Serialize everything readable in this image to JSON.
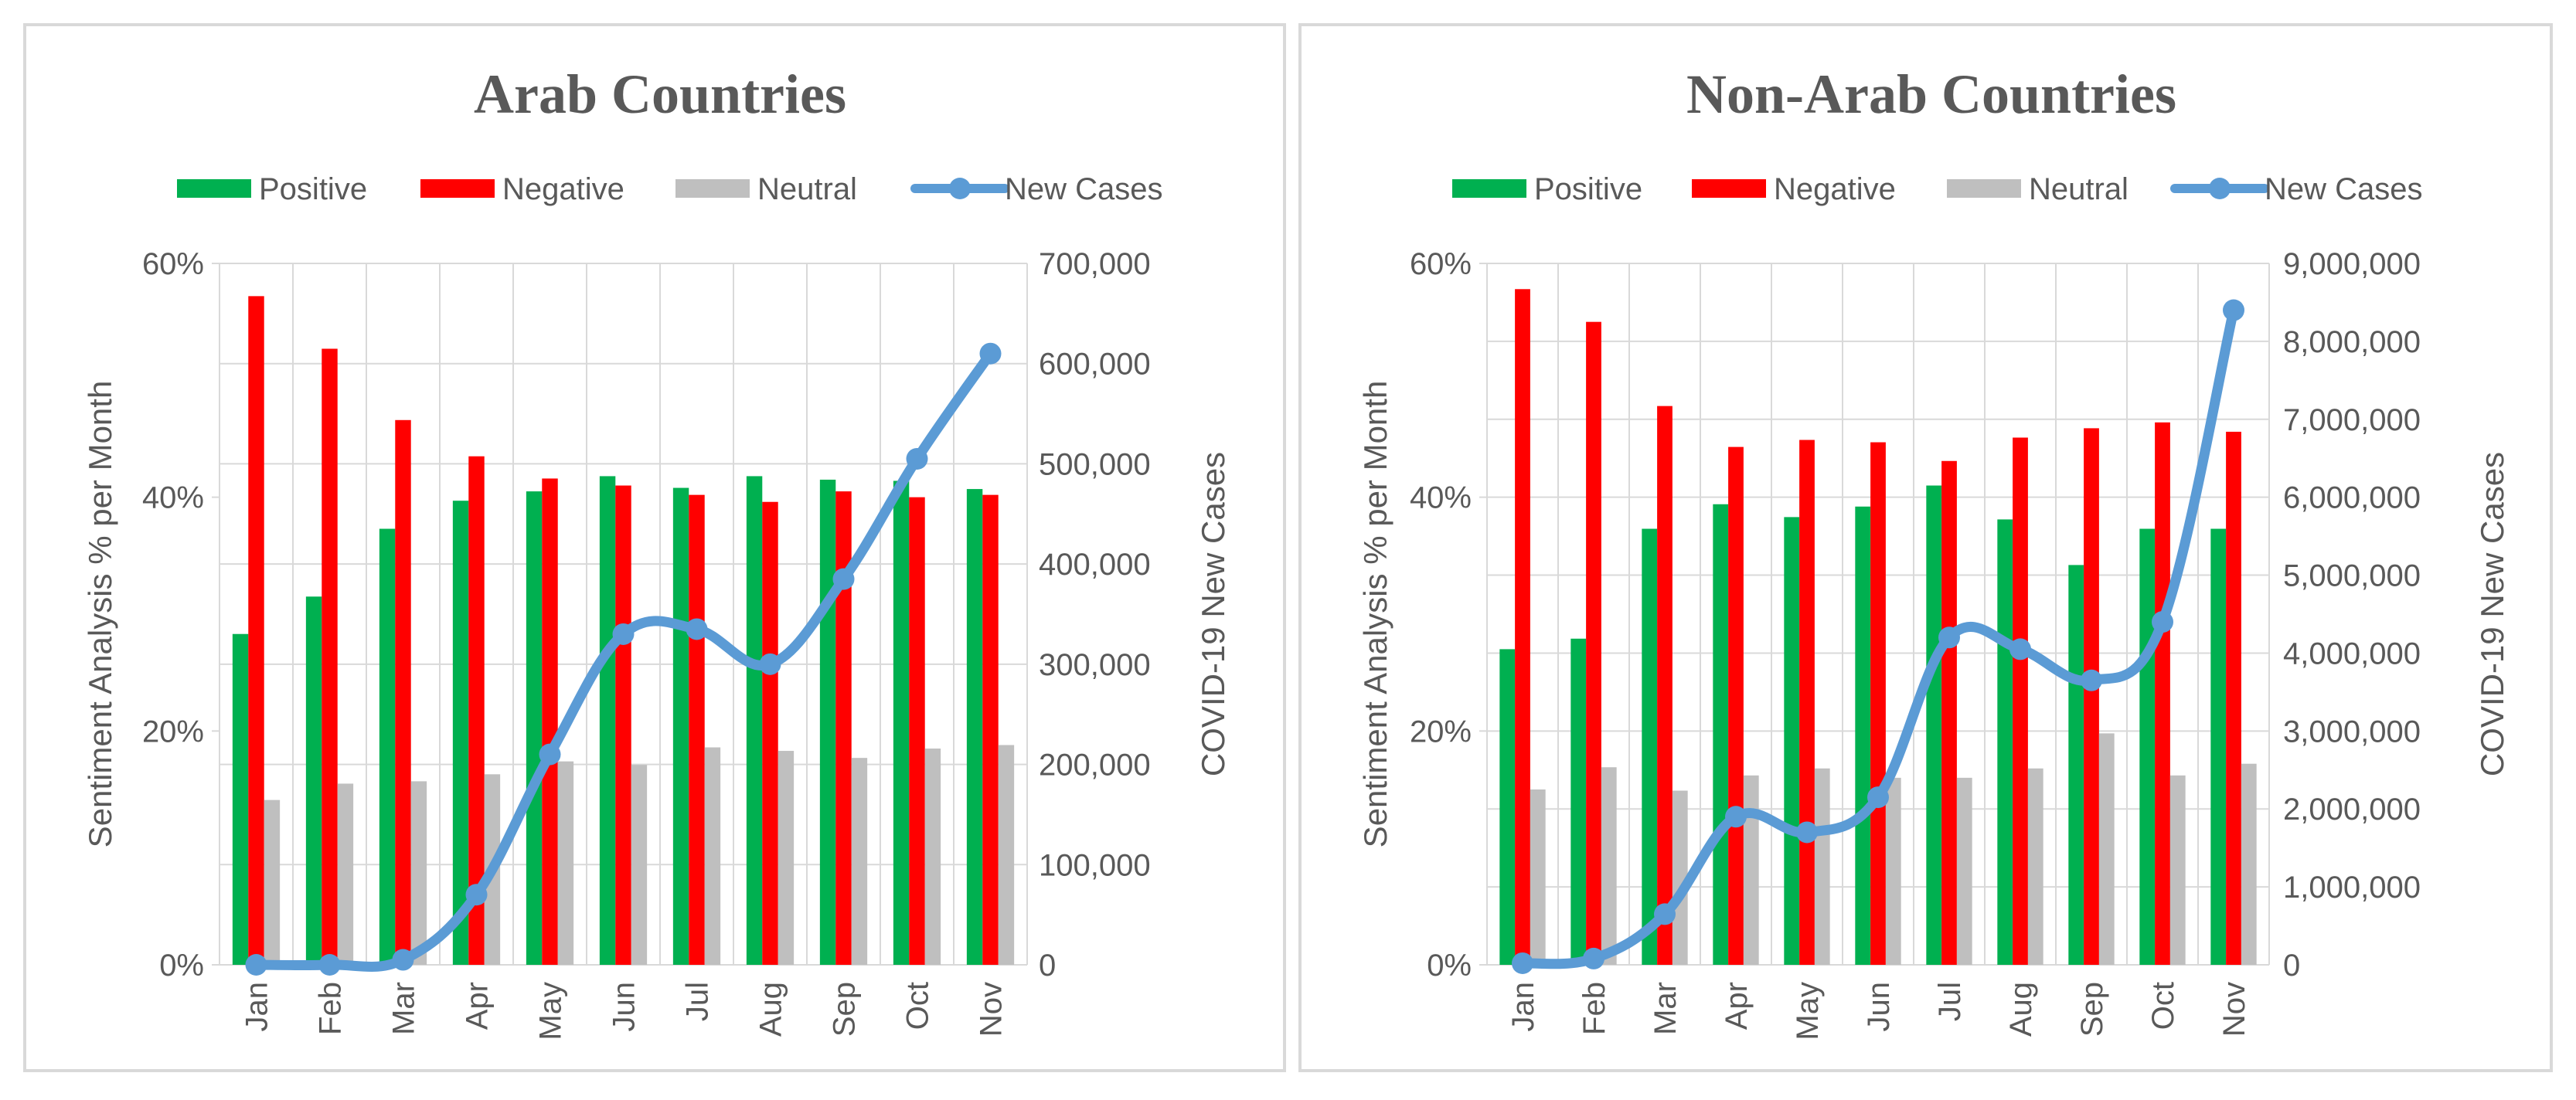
{
  "colors": {
    "positive": "#00b050",
    "negative": "#ff0000",
    "neutral": "#bfbfbf",
    "new_cases": "#5b9bd5",
    "grid": "#d9d9d9",
    "text": "#595959"
  },
  "chart_data": [
    {
      "type": "bar",
      "title": "Arab Countries",
      "categories": [
        "Jan",
        "Feb",
        "Mar",
        "Apr",
        "May",
        "Jun",
        "Jul",
        "Aug",
        "Sep",
        "Oct",
        "Nov"
      ],
      "legend": [
        "Positive",
        "Negative",
        "Neutral",
        "New Cases"
      ],
      "ylabel": "Sentiment Analysis % per Month",
      "y2label": "COVID-19 New Cases",
      "ylim": [
        0,
        60
      ],
      "yticks": [
        0,
        20,
        40,
        60
      ],
      "ytick_labels": [
        "0%",
        "20%",
        "40%",
        "60%"
      ],
      "y2lim": [
        0,
        700000
      ],
      "y2ticks": [
        0,
        100000,
        200000,
        300000,
        400000,
        500000,
        600000,
        700000
      ],
      "y2tick_labels": [
        "0",
        "100,000",
        "200,000",
        "300,000",
        "400,000",
        "500,000",
        "600,000",
        "700,000"
      ],
      "series": [
        {
          "name": "Positive",
          "type": "bar",
          "values": [
            28.3,
            31.5,
            37.3,
            39.7,
            40.5,
            41.8,
            40.8,
            41.8,
            41.5,
            41.4,
            40.7
          ]
        },
        {
          "name": "Negative",
          "type": "bar",
          "values": [
            57.2,
            52.7,
            46.6,
            43.5,
            41.6,
            41.0,
            40.2,
            39.6,
            40.5,
            40.0,
            40.2
          ]
        },
        {
          "name": "Neutral",
          "type": "bar",
          "values": [
            14.1,
            15.5,
            15.7,
            16.3,
            17.4,
            17.1,
            18.6,
            18.3,
            17.7,
            18.5,
            18.8
          ]
        },
        {
          "name": "New Cases",
          "type": "line",
          "axis": "secondary",
          "values": [
            0,
            0,
            5000,
            70000,
            210000,
            330000,
            335000,
            300000,
            385000,
            505000,
            610000
          ]
        }
      ]
    },
    {
      "type": "bar",
      "title": "Non-Arab Countries",
      "categories": [
        "Jan",
        "Feb",
        "Mar",
        "Apr",
        "May",
        "Jun",
        "Jul",
        "Aug",
        "Sep",
        "Oct",
        "Nov"
      ],
      "legend": [
        "Positive",
        "Negative",
        "Neutral",
        "New Cases"
      ],
      "ylabel": "Sentiment Analysis % per Month",
      "y2label": "COVID-19 New Cases",
      "ylim": [
        0,
        60
      ],
      "yticks": [
        0,
        20,
        40,
        60
      ],
      "ytick_labels": [
        "0%",
        "20%",
        "40%",
        "60%"
      ],
      "y2lim": [
        0,
        9000000
      ],
      "y2ticks": [
        0,
        1000000,
        2000000,
        3000000,
        4000000,
        5000000,
        6000000,
        7000000,
        8000000,
        9000000
      ],
      "y2tick_labels": [
        "0",
        "1,000,000",
        "2,000,000",
        "3,000,000",
        "4,000,000",
        "5,000,000",
        "6,000,000",
        "7,000,000",
        "8,000,000",
        "9,000,000"
      ],
      "series": [
        {
          "name": "Positive",
          "type": "bar",
          "values": [
            27.0,
            27.9,
            37.3,
            39.4,
            38.3,
            39.2,
            41.0,
            38.1,
            34.2,
            37.3,
            37.3
          ]
        },
        {
          "name": "Negative",
          "type": "bar",
          "values": [
            57.8,
            55.0,
            47.8,
            44.3,
            44.9,
            44.7,
            43.1,
            45.1,
            45.9,
            46.4,
            45.6
          ]
        },
        {
          "name": "Neutral",
          "type": "bar",
          "values": [
            15.0,
            16.9,
            14.9,
            16.2,
            16.8,
            16.0,
            16.0,
            16.8,
            19.8,
            16.2,
            17.2
          ]
        },
        {
          "name": "New Cases",
          "type": "line",
          "axis": "secondary",
          "values": [
            20000,
            80000,
            650000,
            1900000,
            1700000,
            2150000,
            4200000,
            4050000,
            3650000,
            4400000,
            8400000
          ]
        }
      ]
    }
  ]
}
